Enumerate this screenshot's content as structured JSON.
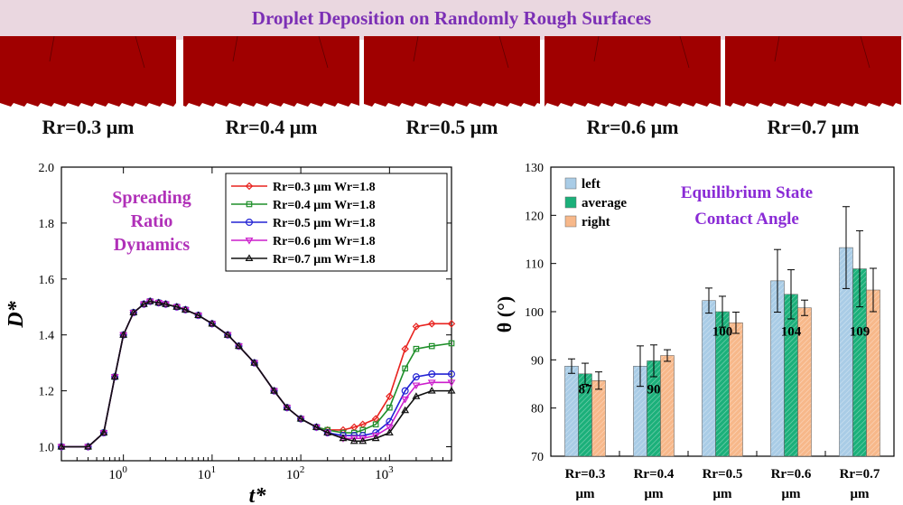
{
  "banner": {
    "title": "Droplet Deposition on Randomly Rough Surfaces"
  },
  "panels": [
    {
      "label": "Rr=0.3 μm"
    },
    {
      "label": "Rr=0.4 μm"
    },
    {
      "label": "Rr=0.5 μm"
    },
    {
      "label": "Rr=0.6 μm"
    },
    {
      "label": "Rr=0.7 μm"
    }
  ],
  "colors": {
    "banner_text": "#7b2fb5",
    "liquid_bg": "#a00000",
    "droplet": "#0a1fb0"
  },
  "chart_data": [
    {
      "type": "line",
      "annotation": "Spreading Ratio Dynamics",
      "xlabel": "t*",
      "ylabel": "D*",
      "xscale": "log",
      "xlim": [
        0.2,
        5000
      ],
      "ylim": [
        0.95,
        2.0
      ],
      "xticks": [
        {
          "v": 1,
          "base": "10",
          "exp": "0"
        },
        {
          "v": 10,
          "base": "10",
          "exp": "1"
        },
        {
          "v": 100,
          "base": "10",
          "exp": "2"
        },
        {
          "v": 1000,
          "base": "10",
          "exp": "3"
        }
      ],
      "yticks": [
        "1.0",
        "1.2",
        "1.4",
        "1.6",
        "1.8",
        "2.0"
      ],
      "legend_position": "top-right",
      "x": [
        0.2,
        0.4,
        0.6,
        0.8,
        1.0,
        1.3,
        1.7,
        2.0,
        2.5,
        3,
        4,
        5,
        7,
        10,
        15,
        20,
        30,
        50,
        70,
        100,
        150,
        200,
        300,
        400,
        500,
        700,
        1000,
        1500,
        2000,
        3000,
        5000
      ],
      "series": [
        {
          "name": "Rr=0.3 μm Wr=1.8",
          "color": "#e8231f",
          "marker": "diamond",
          "values": [
            1.0,
            1.0,
            1.05,
            1.25,
            1.4,
            1.48,
            1.51,
            1.52,
            1.515,
            1.51,
            1.5,
            1.49,
            1.47,
            1.44,
            1.4,
            1.36,
            1.3,
            1.2,
            1.14,
            1.1,
            1.07,
            1.06,
            1.06,
            1.07,
            1.08,
            1.1,
            1.18,
            1.35,
            1.43,
            1.44,
            1.44
          ]
        },
        {
          "name": "Rr=0.4 μm Wr=1.8",
          "color": "#1f8f2a",
          "marker": "square",
          "values": [
            1.0,
            1.0,
            1.05,
            1.25,
            1.4,
            1.48,
            1.51,
            1.52,
            1.515,
            1.51,
            1.5,
            1.49,
            1.47,
            1.44,
            1.4,
            1.36,
            1.3,
            1.2,
            1.14,
            1.1,
            1.07,
            1.06,
            1.05,
            1.05,
            1.06,
            1.08,
            1.14,
            1.28,
            1.35,
            1.36,
            1.37
          ]
        },
        {
          "name": "Rr=0.5 μm Wr=1.8",
          "color": "#2323d4",
          "marker": "circle",
          "values": [
            1.0,
            1.0,
            1.05,
            1.25,
            1.4,
            1.48,
            1.51,
            1.52,
            1.515,
            1.51,
            1.5,
            1.49,
            1.47,
            1.44,
            1.4,
            1.36,
            1.3,
            1.2,
            1.14,
            1.1,
            1.07,
            1.05,
            1.04,
            1.04,
            1.04,
            1.05,
            1.09,
            1.2,
            1.25,
            1.26,
            1.26
          ]
        },
        {
          "name": "Rr=0.6 μm Wr=1.8",
          "color": "#cc1fcc",
          "marker": "triangle-down",
          "values": [
            1.0,
            1.0,
            1.05,
            1.25,
            1.4,
            1.48,
            1.51,
            1.52,
            1.515,
            1.51,
            1.5,
            1.49,
            1.47,
            1.44,
            1.4,
            1.36,
            1.3,
            1.2,
            1.14,
            1.1,
            1.07,
            1.05,
            1.03,
            1.03,
            1.03,
            1.04,
            1.07,
            1.17,
            1.22,
            1.23,
            1.23
          ]
        },
        {
          "name": "Rr=0.7 μm Wr=1.8",
          "color": "#111111",
          "marker": "triangle-up",
          "values": [
            1.0,
            1.0,
            1.05,
            1.25,
            1.4,
            1.48,
            1.51,
            1.52,
            1.515,
            1.51,
            1.5,
            1.49,
            1.47,
            1.44,
            1.4,
            1.36,
            1.3,
            1.2,
            1.14,
            1.1,
            1.07,
            1.05,
            1.03,
            1.02,
            1.02,
            1.03,
            1.05,
            1.13,
            1.18,
            1.2,
            1.2
          ]
        }
      ]
    },
    {
      "type": "bar",
      "annotation": "Equilibrium State Contact Angle",
      "ylabel": "θ (°)",
      "ylim": [
        70,
        130
      ],
      "yticks": [
        "70",
        "80",
        "90",
        "100",
        "110",
        "120",
        "130"
      ],
      "legend_position": "top-left",
      "categories": [
        {
          "line1": "Rr=0.3",
          "line2": "μm"
        },
        {
          "line1": "Rr=0.4",
          "line2": "μm"
        },
        {
          "line1": "Rr=0.5",
          "line2": "μm"
        },
        {
          "line1": "Rr=0.6",
          "line2": "μm"
        },
        {
          "line1": "Rr=0.7",
          "line2": "μm"
        }
      ],
      "avg_labels": [
        "87",
        "90",
        "100",
        "104",
        "109"
      ],
      "series": [
        {
          "name": "left",
          "color": "#a9cce6",
          "values": [
            88.7,
            88.7,
            102.3,
            106.4,
            113.3
          ],
          "errors": [
            1.5,
            4.2,
            2.6,
            6.5,
            8.5
          ]
        },
        {
          "name": "average",
          "color": "#1bb07a",
          "values": [
            87.1,
            89.8,
            100.0,
            103.6,
            108.9
          ],
          "errors": [
            2.2,
            3.3,
            3.2,
            5.1,
            7.9
          ]
        },
        {
          "name": "right",
          "color": "#f7b88a",
          "values": [
            85.7,
            90.9,
            97.7,
            100.8,
            104.5
          ],
          "errors": [
            1.8,
            1.2,
            2.2,
            1.6,
            4.5
          ]
        }
      ]
    }
  ]
}
